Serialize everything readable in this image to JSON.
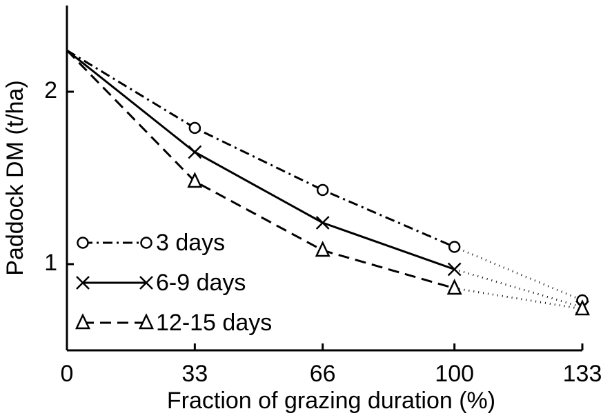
{
  "chart_data": {
    "type": "line",
    "x_label": "Fraction of grazing duration (%)",
    "y_label": "Paddock DM (t/ha)",
    "x": [
      0,
      33,
      66,
      100,
      133
    ],
    "xlim": [
      0,
      133
    ],
    "xticks": [
      0,
      33,
      66,
      100,
      133
    ],
    "ylim": [
      0.5,
      2.5
    ],
    "yticks": [
      1,
      2
    ],
    "grid": false,
    "legend": "lower left",
    "start_marker": false,
    "dotted_last_segment": true,
    "series": [
      {
        "name": "3 days",
        "color": "#000000",
        "marker": "circle",
        "dash": "dash-dot",
        "values": [
          2.24,
          1.79,
          1.43,
          1.1,
          0.79
        ]
      },
      {
        "name": "6-9 days",
        "color": "#000000",
        "marker": "x",
        "dash": "solid",
        "values": [
          2.24,
          1.65,
          1.24,
          0.97,
          0.75
        ]
      },
      {
        "name": "12-15 days",
        "color": "#000000",
        "marker": "triangle",
        "dash": "dashed",
        "values": [
          2.24,
          1.48,
          1.08,
          0.86,
          0.74
        ]
      }
    ]
  }
}
